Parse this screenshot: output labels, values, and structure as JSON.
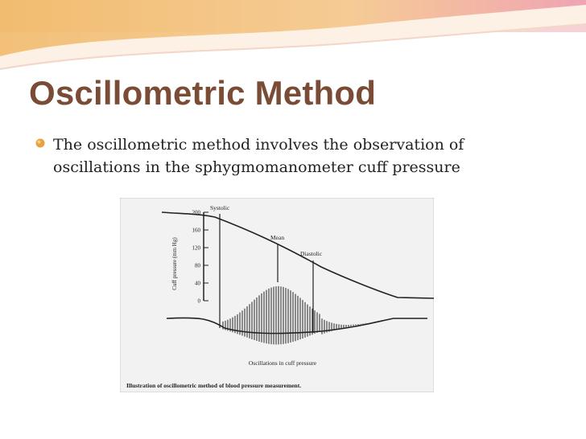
{
  "slide": {
    "title": "Oscillometric Method",
    "bullets": [
      "The oscillometric method  involves the observation of oscillations in the sphygmomanometer cuff pressure"
    ]
  },
  "figure": {
    "y_axis_label": "Cuff pressure (mm Hg)",
    "y_ticks": [
      "200",
      "160",
      "120",
      "80",
      "40",
      "0"
    ],
    "labels": {
      "systolic": "Systolic",
      "mean": "Mean",
      "diastolic": "Diastolic",
      "oscillations": "Oscillations in cuff pressure"
    },
    "caption": "Illustration of oscillometric method of blood pressure measurement."
  },
  "colors": {
    "title": "#7a4c36",
    "bullet": "#e8a23a",
    "banner_orange": "#f4c27a",
    "banner_pink": "#f2cdd0"
  }
}
